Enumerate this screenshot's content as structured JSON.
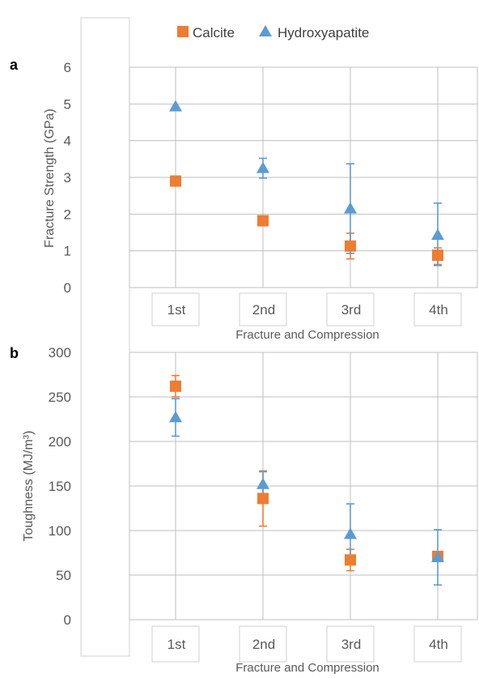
{
  "legend": {
    "position": "top",
    "items": [
      {
        "label": "Calcite",
        "marker": "square",
        "color": "#ED7D31"
      },
      {
        "label": "Hydroxyapatite",
        "marker": "triangle",
        "color": "#5B9BD5"
      }
    ]
  },
  "colors": {
    "calcite": "#ED7D31",
    "hydroxyapatite": "#5B9BD5",
    "grid": "#BFBFBF",
    "frame": "#A6A6A6",
    "text": "#595959"
  },
  "chart_data": [
    {
      "type": "scatter",
      "panel_label": "a",
      "title": "",
      "xlabel": "Fracture and Compression",
      "ylabel": "Fracture Strength (GPa)",
      "categories": [
        "1st",
        "2nd",
        "3rd",
        "4th"
      ],
      "ylim": [
        0,
        6
      ],
      "yticks": [
        0,
        1,
        2,
        3,
        4,
        5,
        6
      ],
      "grid": true,
      "series": [
        {
          "name": "Calcite",
          "values": [
            2.9,
            1.82,
            1.13,
            0.88
          ],
          "err_low": [
            0,
            0,
            0.35,
            0.25
          ],
          "err_high": [
            0,
            0,
            0.35,
            0.2
          ]
        },
        {
          "name": "Hydroxyapatite",
          "values": [
            4.93,
            3.25,
            2.15,
            1.43
          ],
          "err_low": [
            0,
            0.27,
            1.22,
            0.83
          ],
          "err_high": [
            0,
            0.27,
            1.22,
            0.87
          ]
        }
      ]
    },
    {
      "type": "scatter",
      "panel_label": "b",
      "title": "",
      "xlabel": "Fracture and Compression",
      "ylabel": "Toughness (MJ/m³)",
      "categories": [
        "1st",
        "2nd",
        "3rd",
        "4th"
      ],
      "ylim": [
        0,
        300
      ],
      "yticks": [
        0,
        50,
        100,
        150,
        200,
        250,
        300
      ],
      "grid": true,
      "series": [
        {
          "name": "Calcite",
          "values": [
            262,
            136,
            67,
            71
          ],
          "err_low": [
            12,
            31,
            12,
            0
          ],
          "err_high": [
            12,
            31,
            12,
            0
          ]
        },
        {
          "name": "Hydroxyapatite",
          "values": [
            227,
            152,
            96,
            70
          ],
          "err_low": [
            21,
            14,
            34,
            31
          ],
          "err_high": [
            21,
            14,
            34,
            31
          ]
        }
      ]
    }
  ]
}
